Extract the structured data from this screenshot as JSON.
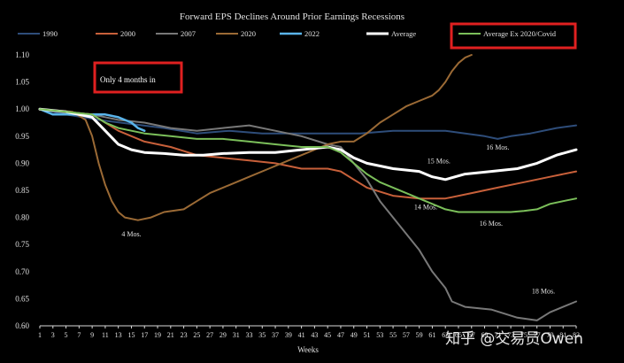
{
  "chart_data": {
    "type": "line",
    "title": "Forward EPS Declines Around Prior Earnings Recessions",
    "xlabel": "Weeks",
    "ylabel": "",
    "xlim": [
      1,
      83
    ],
    "ylim": [
      0.6,
      1.1
    ],
    "x_ticks": [
      1,
      3,
      5,
      7,
      9,
      11,
      13,
      15,
      17,
      19,
      21,
      23,
      25,
      27,
      29,
      31,
      33,
      35,
      37,
      39,
      41,
      43,
      45,
      47,
      49,
      51,
      53,
      55,
      57,
      59,
      61,
      63,
      65,
      67,
      69,
      71,
      73,
      75,
      77,
      79,
      81,
      83
    ],
    "y_ticks": [
      "0.60",
      "0.65",
      "0.70",
      "0.75",
      "0.80",
      "0.85",
      "0.90",
      "0.95",
      "1.00",
      "1.05",
      "1.10"
    ],
    "grid": false,
    "legend_position": "top",
    "series": [
      {
        "name": "1990",
        "color": "#2e4d7a",
        "width": 2,
        "points": [
          [
            1,
            1.0
          ],
          [
            5,
            0.99
          ],
          [
            10,
            0.98
          ],
          [
            20,
            0.965
          ],
          [
            25,
            0.955
          ],
          [
            30,
            0.96
          ],
          [
            35,
            0.955
          ],
          [
            40,
            0.955
          ],
          [
            45,
            0.955
          ],
          [
            50,
            0.955
          ],
          [
            55,
            0.96
          ],
          [
            60,
            0.96
          ],
          [
            63,
            0.96
          ],
          [
            66,
            0.955
          ],
          [
            69,
            0.95
          ],
          [
            71,
            0.945
          ],
          [
            73,
            0.95
          ],
          [
            76,
            0.955
          ],
          [
            80,
            0.965
          ],
          [
            83,
            0.97
          ]
        ]
      },
      {
        "name": "2000",
        "color": "#c8603a",
        "width": 2,
        "points": [
          [
            1,
            1.0
          ],
          [
            5,
            0.995
          ],
          [
            9,
            0.99
          ],
          [
            13,
            0.96
          ],
          [
            17,
            0.94
          ],
          [
            21,
            0.93
          ],
          [
            25,
            0.915
          ],
          [
            29,
            0.91
          ],
          [
            33,
            0.905
          ],
          [
            37,
            0.9
          ],
          [
            41,
            0.89
          ],
          [
            45,
            0.89
          ],
          [
            47,
            0.885
          ],
          [
            49,
            0.87
          ],
          [
            51,
            0.855
          ],
          [
            55,
            0.84
          ],
          [
            59,
            0.835
          ],
          [
            63,
            0.835
          ],
          [
            67,
            0.845
          ],
          [
            71,
            0.855
          ],
          [
            75,
            0.865
          ],
          [
            79,
            0.875
          ],
          [
            83,
            0.885
          ]
        ]
      },
      {
        "name": "2007",
        "color": "#787878",
        "width": 2,
        "points": [
          [
            1,
            1.0
          ],
          [
            5,
            0.995
          ],
          [
            9,
            0.99
          ],
          [
            13,
            0.98
          ],
          [
            17,
            0.975
          ],
          [
            21,
            0.965
          ],
          [
            25,
            0.96
          ],
          [
            29,
            0.965
          ],
          [
            33,
            0.97
          ],
          [
            37,
            0.96
          ],
          [
            41,
            0.95
          ],
          [
            45,
            0.935
          ],
          [
            47,
            0.93
          ],
          [
            49,
            0.9
          ],
          [
            51,
            0.87
          ],
          [
            53,
            0.83
          ],
          [
            55,
            0.8
          ],
          [
            57,
            0.77
          ],
          [
            59,
            0.74
          ],
          [
            61,
            0.7
          ],
          [
            63,
            0.67
          ],
          [
            64,
            0.645
          ],
          [
            66,
            0.635
          ],
          [
            70,
            0.63
          ],
          [
            74,
            0.615
          ],
          [
            77,
            0.61
          ],
          [
            79,
            0.625
          ],
          [
            81,
            0.635
          ],
          [
            83,
            0.645
          ]
        ]
      },
      {
        "name": "2020",
        "color": "#9b6a35",
        "width": 2,
        "points": [
          [
            1,
            1.0
          ],
          [
            6,
            0.995
          ],
          [
            8,
            0.98
          ],
          [
            9,
            0.95
          ],
          [
            10,
            0.9
          ],
          [
            11,
            0.86
          ],
          [
            12,
            0.83
          ],
          [
            13,
            0.81
          ],
          [
            14,
            0.8
          ],
          [
            16,
            0.795
          ],
          [
            18,
            0.8
          ],
          [
            20,
            0.81
          ],
          [
            23,
            0.815
          ],
          [
            25,
            0.83
          ],
          [
            27,
            0.845
          ],
          [
            30,
            0.86
          ],
          [
            33,
            0.875
          ],
          [
            36,
            0.89
          ],
          [
            39,
            0.905
          ],
          [
            42,
            0.92
          ],
          [
            45,
            0.935
          ],
          [
            47,
            0.94
          ],
          [
            49,
            0.94
          ],
          [
            51,
            0.955
          ],
          [
            53,
            0.975
          ],
          [
            55,
            0.99
          ],
          [
            57,
            1.005
          ],
          [
            59,
            1.015
          ],
          [
            61,
            1.025
          ],
          [
            62,
            1.035
          ],
          [
            63,
            1.05
          ],
          [
            64,
            1.07
          ],
          [
            65,
            1.085
          ],
          [
            66,
            1.095
          ],
          [
            67,
            1.1
          ]
        ]
      },
      {
        "name": "2022",
        "color": "#5ab4ea",
        "width": 2.5,
        "points": [
          [
            1,
            1.0
          ],
          [
            3,
            0.99
          ],
          [
            5,
            0.99
          ],
          [
            7,
            0.99
          ],
          [
            9,
            0.99
          ],
          [
            11,
            0.99
          ],
          [
            13,
            0.985
          ],
          [
            15,
            0.975
          ],
          [
            16,
            0.965
          ],
          [
            17,
            0.96
          ]
        ]
      },
      {
        "name": "Average",
        "color": "#ffffff",
        "width": 3,
        "points": [
          [
            1,
            1.0
          ],
          [
            5,
            0.995
          ],
          [
            9,
            0.985
          ],
          [
            11,
            0.96
          ],
          [
            13,
            0.935
          ],
          [
            15,
            0.925
          ],
          [
            17,
            0.92
          ],
          [
            20,
            0.918
          ],
          [
            23,
            0.915
          ],
          [
            26,
            0.915
          ],
          [
            29,
            0.918
          ],
          [
            33,
            0.92
          ],
          [
            37,
            0.92
          ],
          [
            41,
            0.925
          ],
          [
            45,
            0.93
          ],
          [
            47,
            0.925
          ],
          [
            49,
            0.91
          ],
          [
            51,
            0.9
          ],
          [
            55,
            0.89
          ],
          [
            59,
            0.885
          ],
          [
            61,
            0.875
          ],
          [
            63,
            0.87
          ],
          [
            66,
            0.88
          ],
          [
            70,
            0.885
          ],
          [
            74,
            0.89
          ],
          [
            77,
            0.9
          ],
          [
            80,
            0.915
          ],
          [
            83,
            0.925
          ]
        ]
      },
      {
        "name": "Average Ex 2020/Covid",
        "color": "#7bbf5a",
        "width": 2,
        "points": [
          [
            1,
            1.0
          ],
          [
            5,
            0.995
          ],
          [
            9,
            0.99
          ],
          [
            11,
            0.975
          ],
          [
            13,
            0.965
          ],
          [
            15,
            0.96
          ],
          [
            17,
            0.955
          ],
          [
            21,
            0.95
          ],
          [
            25,
            0.945
          ],
          [
            29,
            0.945
          ],
          [
            33,
            0.94
          ],
          [
            37,
            0.935
          ],
          [
            41,
            0.93
          ],
          [
            45,
            0.93
          ],
          [
            47,
            0.92
          ],
          [
            49,
            0.9
          ],
          [
            51,
            0.88
          ],
          [
            53,
            0.865
          ],
          [
            55,
            0.855
          ],
          [
            57,
            0.845
          ],
          [
            59,
            0.835
          ],
          [
            61,
            0.825
          ],
          [
            63,
            0.815
          ],
          [
            65,
            0.81
          ],
          [
            67,
            0.81
          ],
          [
            69,
            0.81
          ],
          [
            71,
            0.81
          ],
          [
            73,
            0.81
          ],
          [
            75,
            0.812
          ],
          [
            77,
            0.815
          ],
          [
            79,
            0.825
          ],
          [
            81,
            0.83
          ],
          [
            83,
            0.835
          ]
        ]
      }
    ],
    "annotations": [
      {
        "text": "Only 4 months in",
        "boxed": true
      },
      {
        "text": "4 Mos.",
        "x": 15,
        "y": 0.765
      },
      {
        "text": "14 Mos.",
        "x": 60,
        "y": 0.815
      },
      {
        "text": "15 Mos.",
        "x": 62,
        "y": 0.9
      },
      {
        "text": "16 Mos.",
        "x": 71,
        "y": 0.925
      },
      {
        "text": "16 Mos.",
        "x": 70,
        "y": 0.785
      },
      {
        "text": "18 Mos.",
        "x": 78,
        "y": 0.66
      }
    ],
    "highlight_legend_entry": "Average Ex 2020/Covid",
    "highlight_color": "#e02020"
  },
  "watermark": "知乎 @交易员Owen"
}
